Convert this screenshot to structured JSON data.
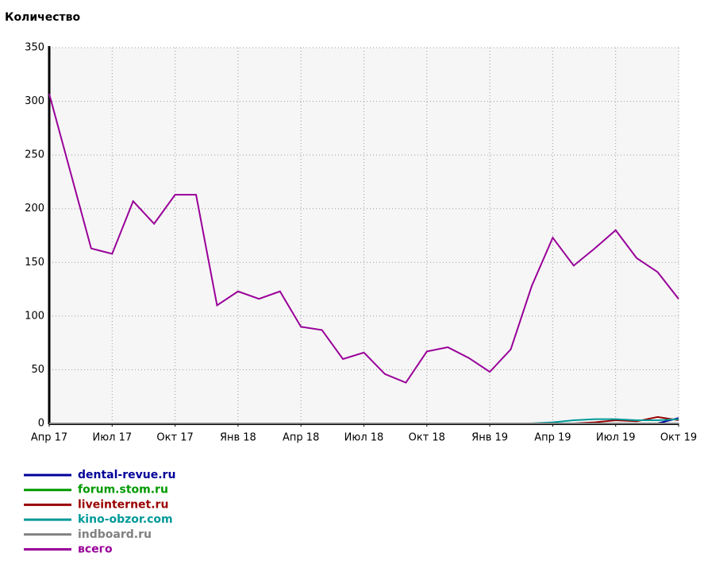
{
  "chart_data": {
    "type": "line",
    "ylabel": "Количество",
    "categories": [
      "Апр 17",
      null,
      null,
      "Июл 17",
      null,
      null,
      "Окт 17",
      null,
      null,
      "Янв 18",
      null,
      null,
      "Апр 18",
      null,
      null,
      "Июл 18",
      null,
      null,
      "Окт 18",
      null,
      null,
      "Янв 19",
      null,
      null,
      "Апр 19",
      null,
      null,
      "Июл 19",
      null,
      null,
      "Окт 19"
    ],
    "ylim": [
      0,
      350
    ],
    "yticks": [
      0,
      50,
      100,
      150,
      200,
      250,
      300,
      350
    ],
    "grid": true,
    "series": [
      {
        "name": "dental-revue.ru",
        "color": "#000099",
        "values": [
          0,
          0,
          0,
          0,
          0,
          0,
          0,
          0,
          0,
          0,
          0,
          0,
          0,
          0,
          0,
          0,
          0,
          0,
          0,
          0,
          0,
          0,
          0,
          0,
          0,
          0,
          0,
          0,
          0,
          0,
          5
        ]
      },
      {
        "name": "forum.stom.ru",
        "color": "#009900",
        "values": [
          0,
          0,
          0,
          0,
          0,
          0,
          0,
          0,
          0,
          0,
          0,
          0,
          0,
          0,
          0,
          0,
          0,
          0,
          0,
          0,
          0,
          0,
          0,
          0,
          0,
          0,
          0,
          0,
          0,
          0,
          0
        ]
      },
      {
        "name": "liveinternet.ru",
        "color": "#990000",
        "values": [
          0,
          0,
          0,
          0,
          0,
          0,
          0,
          0,
          0,
          0,
          0,
          0,
          0,
          0,
          0,
          0,
          0,
          0,
          0,
          0,
          0,
          0,
          0,
          0,
          0,
          0,
          1,
          3,
          2,
          6,
          3
        ]
      },
      {
        "name": "kino-obzor.com",
        "color": "#009999",
        "values": [
          0,
          0,
          0,
          0,
          0,
          0,
          0,
          0,
          0,
          0,
          0,
          0,
          0,
          0,
          0,
          0,
          0,
          0,
          0,
          0,
          0,
          0,
          0,
          0,
          1,
          3,
          4,
          4,
          3,
          3,
          4
        ]
      },
      {
        "name": "indboard.ru",
        "color": "#808080",
        "values": [
          0,
          0,
          0,
          0,
          0,
          0,
          0,
          0,
          0,
          0,
          0,
          0,
          0,
          0,
          0,
          0,
          0,
          0,
          0,
          0,
          0,
          0,
          0,
          0,
          0,
          0,
          0,
          0,
          0,
          0,
          0
        ]
      },
      {
        "name": "всего",
        "color": "#990099",
        "values": [
          307,
          235,
          163,
          158,
          207,
          186,
          213,
          213,
          110,
          123,
          116,
          123,
          90,
          87,
          60,
          66,
          46,
          38,
          67,
          71,
          61,
          48,
          69,
          128,
          173,
          147,
          163,
          180,
          154,
          141,
          116
        ]
      }
    ]
  }
}
